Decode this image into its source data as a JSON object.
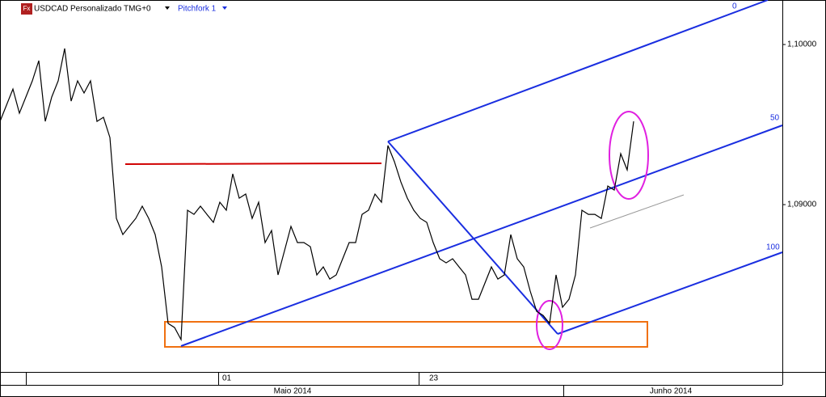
{
  "chart_data": {
    "type": "line",
    "title": "USDCAD Personalizado TMG+0",
    "icon": "Fx",
    "tool": "Pitchfork 1",
    "pitchfork_levels": [
      "0",
      "50",
      "100"
    ],
    "period_labels": [
      "Maio 2014",
      "Junho 2014"
    ],
    "color": "#000000",
    "categories": [
      null,
      null,
      null,
      null,
      null,
      null,
      null,
      null,
      null,
      null,
      null,
      null,
      null,
      null,
      null,
      null,
      null,
      null,
      null,
      null,
      null,
      null,
      null,
      null,
      null,
      null,
      null,
      null,
      null,
      null,
      null,
      null,
      null,
      null,
      "01",
      null,
      null,
      null,
      null,
      null,
      null,
      null,
      null,
      null,
      null,
      null,
      null,
      null,
      null,
      null,
      null,
      null,
      null,
      null,
      null,
      null,
      null,
      null,
      null,
      null,
      null,
      null,
      null,
      null,
      null,
      null,
      "23",
      null,
      null,
      null,
      null,
      null,
      null,
      null,
      null,
      null,
      null,
      null,
      null,
      null,
      null,
      null,
      null,
      null,
      null,
      null,
      null,
      null,
      null,
      null,
      null,
      null,
      null,
      null,
      null,
      null,
      null,
      null,
      null
    ],
    "values": [
      1.0952,
      1.09621,
      1.09722,
      1.09571,
      1.09672,
      1.09773,
      1.09899,
      1.0952,
      1.09672,
      1.09773,
      1.09975,
      1.09646,
      1.09773,
      1.09697,
      1.09773,
      1.0952,
      1.09545,
      1.09419,
      1.08914,
      1.08813,
      1.08864,
      1.08914,
      1.0899,
      1.08914,
      1.08813,
      1.08611,
      1.08258,
      1.08232,
      1.08157,
      1.08965,
      1.08939,
      1.0899,
      1.08939,
      1.08889,
      1.09015,
      1.08965,
      1.09192,
      1.0904,
      1.09066,
      1.08914,
      1.09015,
      1.08763,
      1.08838,
      1.08561,
      1.08712,
      1.08864,
      1.08763,
      1.08763,
      1.08737,
      1.08561,
      1.08611,
      1.08535,
      1.08561,
      1.08662,
      1.08763,
      1.08763,
      1.08939,
      1.08965,
      1.09066,
      1.09015,
      1.09369,
      1.09268,
      1.09141,
      1.0904,
      1.08965,
      1.08914,
      1.08889,
      1.08763,
      1.08662,
      1.08636,
      1.08662,
      1.08611,
      1.08561,
      1.08409,
      1.08409,
      1.0851,
      1.08611,
      1.08535,
      1.08561,
      1.08813,
      1.08662,
      1.08611,
      1.0846,
      1.08333,
      1.08308,
      1.08258,
      1.08561,
      1.08359,
      1.08409,
      1.08561,
      1.08965,
      1.08939,
      1.08939,
      1.08914,
      1.09116,
      1.09091,
      1.09318,
      1.09217,
      1.0952
    ],
    "ylim": [
      1.07955,
      1.10278
    ],
    "yticks": [
      {
        "value": 1.1,
        "label": "1,10000"
      },
      {
        "value": 1.09,
        "label": "1,09000"
      }
    ],
    "xlim": [
      0,
      121
    ]
  }
}
